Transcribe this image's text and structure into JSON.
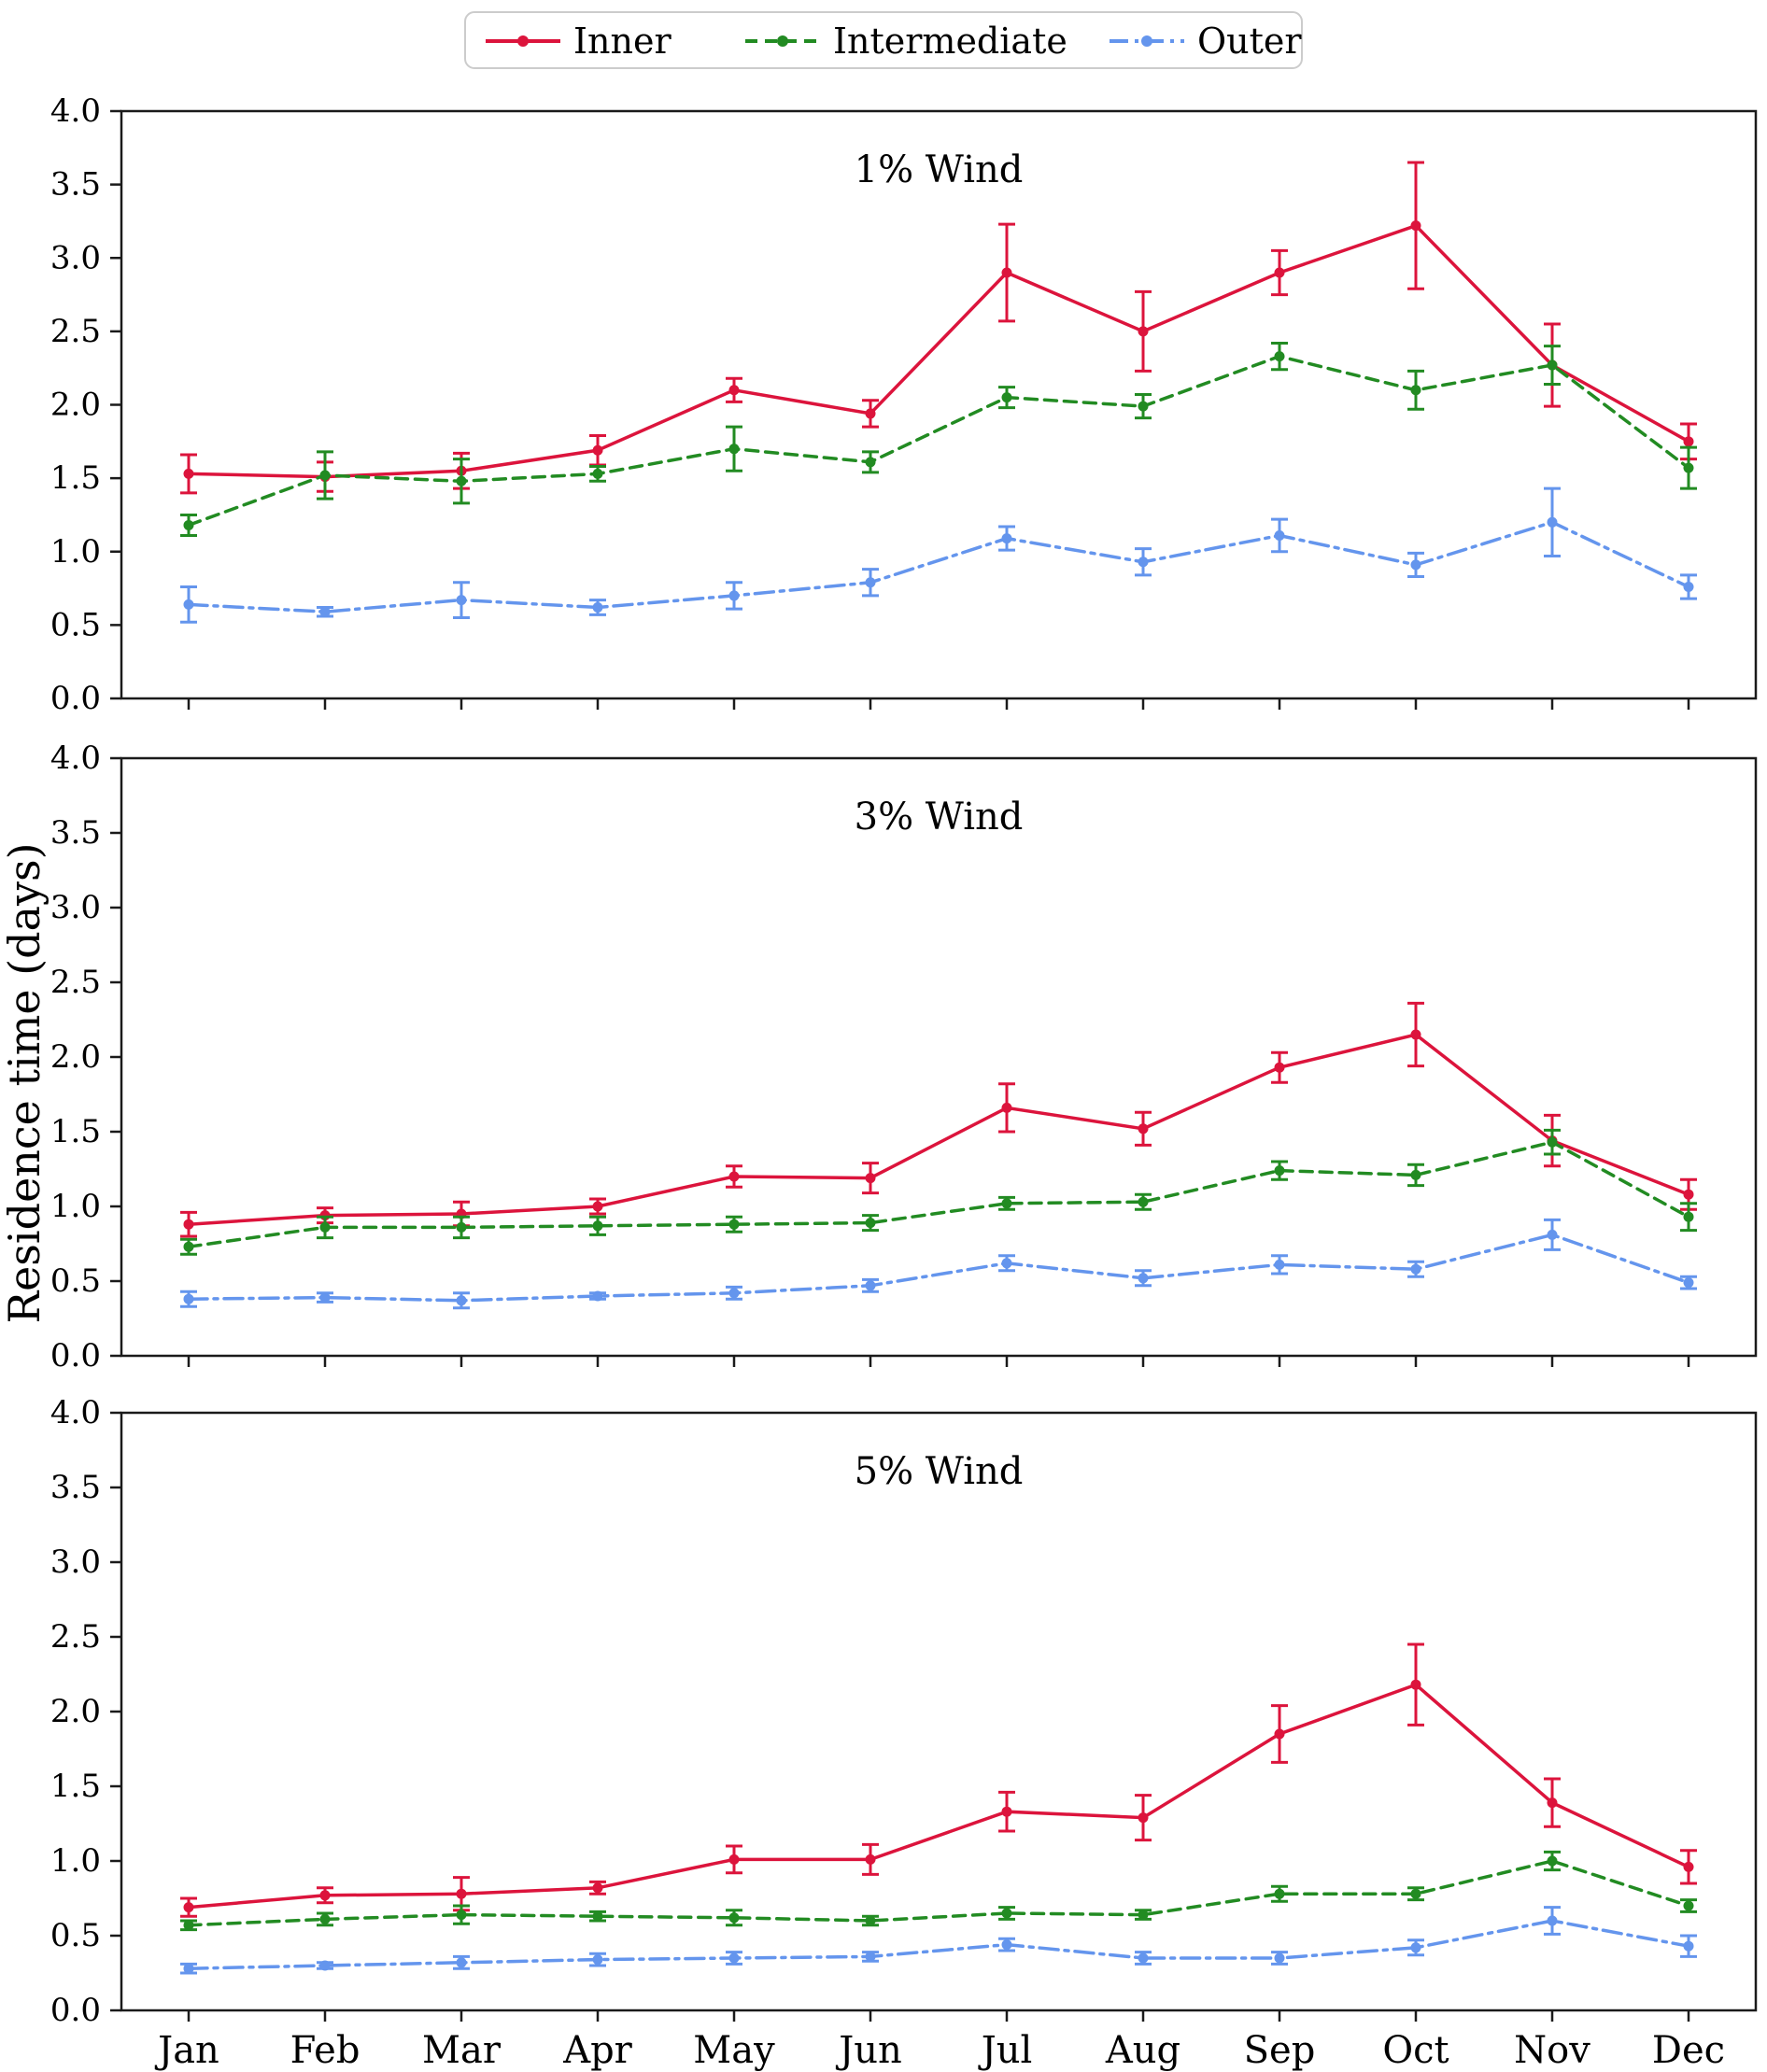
{
  "figure": {
    "ylabel": "Residence time (days)",
    "background": "#ffffff",
    "axis_color": "#1a1a1a",
    "legend": {
      "border_color": "#cccccc",
      "entries": [
        {
          "label": "Inner",
          "color": "#dc143c",
          "style": "solid"
        },
        {
          "label": "Intermediate",
          "color": "#228b22",
          "style": "dashed"
        },
        {
          "label": "Outer",
          "color": "#6495ed",
          "style": "dashdot"
        }
      ]
    }
  },
  "chart_data": [
    {
      "type": "line",
      "title": "1% Wind",
      "xlabel": "",
      "ylabel": "Residence time (days)",
      "ylim": [
        0.0,
        4.0
      ],
      "ytick_step": 0.5,
      "grid": false,
      "legend_position": "top-center",
      "categories": [
        "Jan",
        "Feb",
        "Mar",
        "Apr",
        "May",
        "Jun",
        "Jul",
        "Aug",
        "Sep",
        "Oct",
        "Nov",
        "Dec"
      ],
      "series": [
        {
          "name": "Inner",
          "color": "#dc143c",
          "style": "solid",
          "values": [
            1.53,
            1.51,
            1.55,
            1.69,
            2.1,
            1.94,
            2.9,
            2.5,
            2.9,
            3.22,
            2.27,
            1.75
          ],
          "errors": [
            0.13,
            0.1,
            0.12,
            0.1,
            0.08,
            0.09,
            0.33,
            0.27,
            0.15,
            0.43,
            0.28,
            0.12
          ]
        },
        {
          "name": "Intermediate",
          "color": "#228b22",
          "style": "dashed",
          "values": [
            1.18,
            1.52,
            1.48,
            1.53,
            1.7,
            1.61,
            2.05,
            1.99,
            2.33,
            2.1,
            2.27,
            1.57
          ],
          "errors": [
            0.07,
            0.16,
            0.15,
            0.05,
            0.15,
            0.07,
            0.07,
            0.08,
            0.09,
            0.13,
            0.13,
            0.14
          ]
        },
        {
          "name": "Outer",
          "color": "#6495ed",
          "style": "dashdot",
          "values": [
            0.64,
            0.59,
            0.67,
            0.62,
            0.7,
            0.79,
            1.09,
            0.93,
            1.11,
            0.91,
            1.2,
            0.76
          ],
          "errors": [
            0.12,
            0.03,
            0.12,
            0.05,
            0.09,
            0.09,
            0.08,
            0.09,
            0.11,
            0.08,
            0.23,
            0.08
          ]
        }
      ]
    },
    {
      "type": "line",
      "title": "3% Wind",
      "xlabel": "",
      "ylabel": "Residence time (days)",
      "ylim": [
        0.0,
        4.0
      ],
      "ytick_step": 0.5,
      "grid": false,
      "categories": [
        "Jan",
        "Feb",
        "Mar",
        "Apr",
        "May",
        "Jun",
        "Jul",
        "Aug",
        "Sep",
        "Oct",
        "Nov",
        "Dec"
      ],
      "series": [
        {
          "name": "Inner",
          "color": "#dc143c",
          "style": "solid",
          "values": [
            0.88,
            0.94,
            0.95,
            1.0,
            1.2,
            1.19,
            1.66,
            1.52,
            1.93,
            2.15,
            1.44,
            1.08
          ],
          "errors": [
            0.08,
            0.05,
            0.08,
            0.05,
            0.07,
            0.1,
            0.16,
            0.11,
            0.1,
            0.21,
            0.17,
            0.1
          ]
        },
        {
          "name": "Intermediate",
          "color": "#228b22",
          "style": "dashed",
          "values": [
            0.73,
            0.86,
            0.86,
            0.87,
            0.88,
            0.89,
            1.02,
            1.03,
            1.24,
            1.21,
            1.43,
            0.93
          ],
          "errors": [
            0.05,
            0.07,
            0.07,
            0.06,
            0.05,
            0.05,
            0.04,
            0.05,
            0.06,
            0.07,
            0.08,
            0.09
          ]
        },
        {
          "name": "Outer",
          "color": "#6495ed",
          "style": "dashdot",
          "values": [
            0.38,
            0.39,
            0.37,
            0.4,
            0.42,
            0.47,
            0.62,
            0.52,
            0.61,
            0.58,
            0.81,
            0.49
          ],
          "errors": [
            0.05,
            0.03,
            0.05,
            0.02,
            0.04,
            0.04,
            0.05,
            0.05,
            0.06,
            0.05,
            0.1,
            0.04
          ]
        }
      ]
    },
    {
      "type": "line",
      "title": "5% Wind",
      "xlabel": "",
      "ylabel": "Residence time (days)",
      "ylim": [
        0.0,
        4.0
      ],
      "ytick_step": 0.5,
      "grid": false,
      "categories": [
        "Jan",
        "Feb",
        "Mar",
        "Apr",
        "May",
        "Jun",
        "Jul",
        "Aug",
        "Sep",
        "Oct",
        "Nov",
        "Dec"
      ],
      "series": [
        {
          "name": "Inner",
          "color": "#dc143c",
          "style": "solid",
          "values": [
            0.69,
            0.77,
            0.78,
            0.82,
            1.01,
            1.01,
            1.33,
            1.29,
            1.85,
            2.18,
            1.39,
            0.96
          ],
          "errors": [
            0.06,
            0.05,
            0.11,
            0.04,
            0.09,
            0.1,
            0.13,
            0.15,
            0.19,
            0.27,
            0.16,
            0.11
          ]
        },
        {
          "name": "Intermediate",
          "color": "#228b22",
          "style": "dashed",
          "values": [
            0.57,
            0.61,
            0.64,
            0.63,
            0.62,
            0.6,
            0.65,
            0.64,
            0.78,
            0.78,
            1.0,
            0.7
          ],
          "errors": [
            0.03,
            0.04,
            0.06,
            0.03,
            0.05,
            0.03,
            0.04,
            0.03,
            0.05,
            0.04,
            0.06,
            0.04
          ]
        },
        {
          "name": "Outer",
          "color": "#6495ed",
          "style": "dashdot",
          "values": [
            0.28,
            0.3,
            0.32,
            0.34,
            0.35,
            0.36,
            0.44,
            0.35,
            0.35,
            0.42,
            0.6,
            0.43
          ],
          "errors": [
            0.03,
            0.02,
            0.04,
            0.04,
            0.04,
            0.03,
            0.04,
            0.04,
            0.04,
            0.05,
            0.09,
            0.07
          ]
        }
      ]
    }
  ]
}
